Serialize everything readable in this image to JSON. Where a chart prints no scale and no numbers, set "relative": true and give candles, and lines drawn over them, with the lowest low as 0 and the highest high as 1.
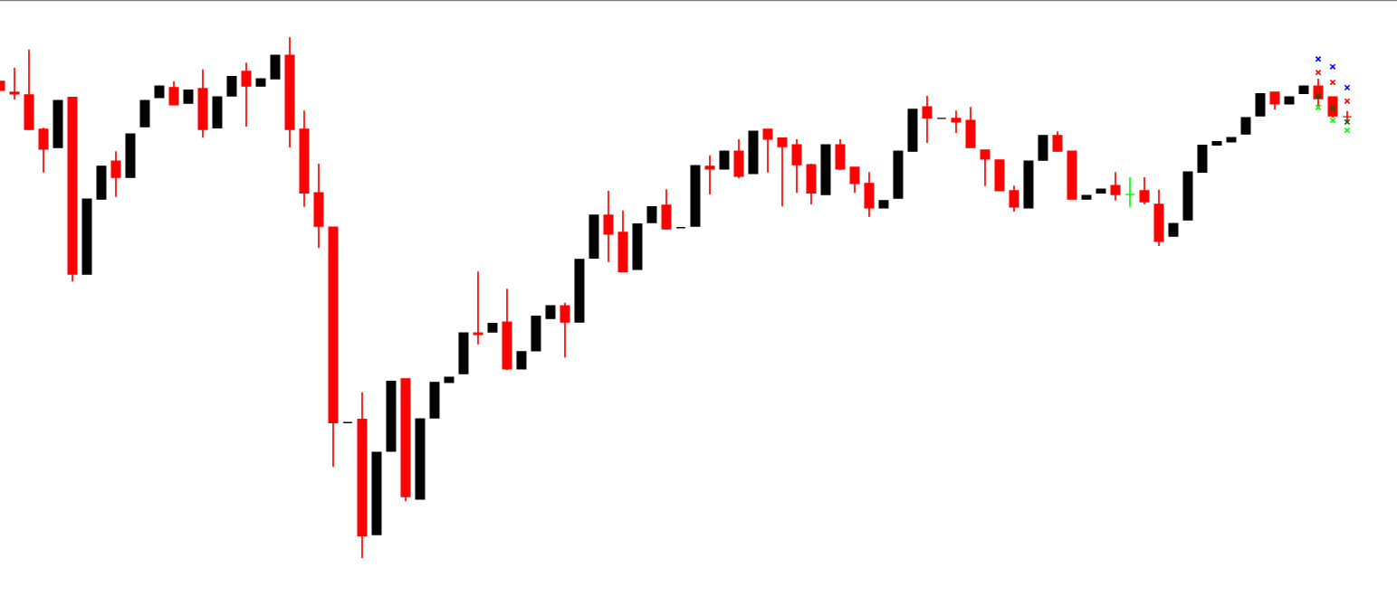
{
  "chart_data": {
    "type": "candlestick",
    "relative": true,
    "grid": false,
    "marker": "cross",
    "categories": [
      null,
      null,
      null,
      null,
      null,
      null,
      null,
      null,
      null,
      null,
      null,
      null,
      null,
      null,
      null,
      null,
      null,
      null,
      null,
      null,
      null,
      null,
      null,
      null,
      null,
      null,
      null,
      null,
      null,
      null,
      null,
      null,
      null,
      null,
      null,
      null,
      null,
      null,
      null,
      null,
      null,
      null,
      null,
      null,
      null,
      null,
      null,
      null,
      null,
      null,
      null,
      null,
      null,
      null,
      null,
      null,
      null,
      null,
      null,
      null,
      null,
      null,
      null,
      null,
      null,
      null,
      null,
      null,
      null,
      null,
      null,
      null,
      null,
      null,
      null,
      null,
      null,
      null,
      null,
      null,
      null,
      null,
      null,
      null,
      null,
      null,
      null,
      null,
      null,
      null,
      null,
      null,
      null,
      null
    ],
    "ohlc": [
      [
        0.915,
        0.915,
        0.898,
        0.898
      ],
      [
        0.894,
        0.941,
        0.88,
        0.891
      ],
      [
        0.889,
        0.976,
        0.821,
        0.823
      ],
      [
        0.823,
        0.826,
        0.74,
        0.785
      ],
      [
        0.788,
        0.878,
        0.788,
        0.878
      ],
      [
        0.884,
        0.884,
        0.531,
        0.545
      ],
      [
        0.545,
        0.689,
        0.545,
        0.689
      ],
      [
        0.689,
        0.752,
        0.689,
        0.752
      ],
      [
        0.762,
        0.781,
        0.693,
        0.731
      ],
      [
        0.731,
        0.814,
        0.731,
        0.814
      ],
      [
        0.828,
        0.878,
        0.828,
        0.878
      ],
      [
        0.884,
        0.906,
        0.884,
        0.906
      ],
      [
        0.903,
        0.915,
        0.87,
        0.87
      ],
      [
        0.873,
        0.898,
        0.873,
        0.898
      ],
      [
        0.901,
        0.938,
        0.807,
        0.823
      ],
      [
        0.826,
        0.885,
        0.826,
        0.885
      ],
      [
        0.887,
        0.924,
        0.887,
        0.924
      ],
      [
        0.934,
        0.951,
        0.828,
        0.906
      ],
      [
        0.906,
        0.92,
        0.906,
        0.92
      ],
      [
        0.92,
        0.965,
        0.92,
        0.965
      ],
      [
        0.965,
        1,
        0.788,
        0.823
      ],
      [
        0.823,
        0.859,
        0.674,
        0.701
      ],
      [
        0.701,
        0.757,
        0.595,
        0.637
      ],
      [
        0.635,
        0.635,
        0.175,
        0.26
      ],
      [
        0.26,
        0.26,
        0.26,
        0.26
      ],
      [
        0.266,
        0.318,
        0,
        0.043
      ],
      [
        0.045,
        0.203,
        0.045,
        0.203
      ],
      [
        0.205,
        0.339,
        0.205,
        0.339
      ],
      [
        0.344,
        0.344,
        0.109,
        0.118
      ],
      [
        0.113,
        0.267,
        0.113,
        0.267
      ],
      [
        0.269,
        0.337,
        0.269,
        0.337
      ],
      [
        0.337,
        0.347,
        0.337,
        0.347
      ],
      [
        0.354,
        0.432,
        0.354,
        0.432
      ],
      [
        0.432,
        0.55,
        0.41,
        0.429
      ],
      [
        0.434,
        0.45,
        0.434,
        0.45
      ],
      [
        0.453,
        0.517,
        0.361,
        0.363
      ],
      [
        0.363,
        0.396,
        0.363,
        0.396
      ],
      [
        0.398,
        0.464,
        0.398,
        0.464
      ],
      [
        0.46,
        0.484,
        0.46,
        0.484
      ],
      [
        0.484,
        0.49,
        0.385,
        0.453
      ],
      [
        0.453,
        0.573,
        0.453,
        0.573
      ],
      [
        0.576,
        0.658,
        0.576,
        0.658
      ],
      [
        0.658,
        0.705,
        0.568,
        0.622
      ],
      [
        0.625,
        0.667,
        0.55,
        0.55
      ],
      [
        0.554,
        0.641,
        0.554,
        0.641
      ],
      [
        0.644,
        0.674,
        0.644,
        0.674
      ],
      [
        0.677,
        0.708,
        0.63,
        0.632
      ],
      [
        0.634,
        0.634,
        0.634,
        0.634
      ],
      [
        0.637,
        0.753,
        0.637,
        0.753
      ],
      [
        0.752,
        0.773,
        0.698,
        0.747
      ],
      [
        0.747,
        0.781,
        0.747,
        0.781
      ],
      [
        0.781,
        0.804,
        0.729,
        0.733
      ],
      [
        0.738,
        0.819,
        0.738,
        0.819
      ],
      [
        0.823,
        0.823,
        0.74,
        0.804
      ],
      [
        0.806,
        0.806,
        0.675,
        0.79
      ],
      [
        0.793,
        0.804,
        0.701,
        0.755
      ],
      [
        0.755,
        0.757,
        0.679,
        0.701
      ],
      [
        0.698,
        0.793,
        0.698,
        0.793
      ],
      [
        0.793,
        0.804,
        0.745,
        0.747
      ],
      [
        0.75,
        0.75,
        0.701,
        0.719
      ],
      [
        0.719,
        0.741,
        0.655,
        0.672
      ],
      [
        0.672,
        0.686,
        0.672,
        0.686
      ],
      [
        0.691,
        0.781,
        0.691,
        0.781
      ],
      [
        0.781,
        0.861,
        0.781,
        0.861
      ],
      [
        0.866,
        0.887,
        0.797,
        0.845
      ],
      [
        0.844,
        0.844,
        0.844,
        0.844
      ],
      [
        0.844,
        0.859,
        0.816,
        0.837
      ],
      [
        0.84,
        0.866,
        0.788,
        0.788
      ],
      [
        0.783,
        0.783,
        0.714,
        0.766
      ],
      [
        0.764,
        0.764,
        0.705,
        0.705
      ],
      [
        0.705,
        0.715,
        0.665,
        0.674
      ],
      [
        0.672,
        0.762,
        0.672,
        0.762
      ],
      [
        0.764,
        0.811,
        0.764,
        0.811
      ],
      [
        0.811,
        0.819,
        0.78,
        0.781
      ],
      [
        0.781,
        0.781,
        0.689,
        0.689
      ],
      [
        0.689,
        0.696,
        0.689,
        0.696
      ],
      [
        0.701,
        0.708,
        0.701,
        0.708
      ],
      [
        0.715,
        0.741,
        0.686,
        0.698
      ],
      [
        0.698,
        0.731,
        0.674,
        0.698
      ],
      [
        0.705,
        0.731,
        0.679,
        0.684
      ],
      [
        0.679,
        0.707,
        0.599,
        0.608
      ],
      [
        0.618,
        0.642,
        0.618,
        0.642
      ],
      [
        0.649,
        0.741,
        0.649,
        0.741
      ],
      [
        0.741,
        0.792,
        0.741,
        0.792
      ],
      [
        0.793,
        0.799,
        0.793,
        0.799
      ],
      [
        0.799,
        0.807,
        0.799,
        0.807
      ],
      [
        0.814,
        0.845,
        0.814,
        0.845
      ],
      [
        0.849,
        0.891,
        0.849,
        0.891
      ],
      [
        0.894,
        0.894,
        0.861,
        0.872
      ],
      [
        0.872,
        0.885,
        0.872,
        0.885
      ],
      [
        0.892,
        0.906,
        0.892,
        0.906
      ],
      [
        0.906,
        0.92,
        0.866,
        0.882
      ],
      [
        0.885,
        0.885,
        0.845,
        0.849
      ],
      [
        0.847,
        0.858,
        0.839,
        0.847
      ]
    ],
    "colors": [
      "#ff0000",
      "#ff0000",
      "#ff0000",
      "#ff0000",
      "#000000",
      "#ff0000",
      "#000000",
      "#000000",
      "#ff0000",
      "#000000",
      "#000000",
      "#000000",
      "#ff0000",
      "#000000",
      "#ff0000",
      "#000000",
      "#000000",
      "#ff0000",
      "#000000",
      "#000000",
      "#ff0000",
      "#ff0000",
      "#ff0000",
      "#ff0000",
      "#000000",
      "#ff0000",
      "#000000",
      "#000000",
      "#ff0000",
      "#000000",
      "#000000",
      "#000000",
      "#000000",
      "#ff0000",
      "#000000",
      "#ff0000",
      "#000000",
      "#000000",
      "#000000",
      "#ff0000",
      "#000000",
      "#000000",
      "#ff0000",
      "#ff0000",
      "#000000",
      "#000000",
      "#ff0000",
      "#000000",
      "#000000",
      "#ff0000",
      "#000000",
      "#ff0000",
      "#000000",
      "#ff0000",
      "#ff0000",
      "#ff0000",
      "#ff0000",
      "#000000",
      "#ff0000",
      "#ff0000",
      "#ff0000",
      "#000000",
      "#000000",
      "#000000",
      "#ff0000",
      "#000000",
      "#ff0000",
      "#ff0000",
      "#ff0000",
      "#ff0000",
      "#ff0000",
      "#000000",
      "#000000",
      "#ff0000",
      "#ff0000",
      "#000000",
      "#000000",
      "#ff0000",
      "#00ff00",
      "#ff0000",
      "#ff0000",
      "#000000",
      "#000000",
      "#000000",
      "#000000",
      "#000000",
      "#000000",
      "#000000",
      "#ff0000",
      "#000000",
      "#000000",
      "#ff0000",
      "#ff0000",
      "#ff0000"
    ],
    "series": [
      {
        "type": "scatter",
        "color": "#0000ff",
        "values": [
          null,
          null,
          null,
          null,
          null,
          null,
          null,
          null,
          null,
          null,
          null,
          null,
          null,
          null,
          null,
          null,
          null,
          null,
          null,
          null,
          null,
          null,
          null,
          null,
          null,
          null,
          null,
          null,
          null,
          null,
          null,
          null,
          null,
          null,
          null,
          null,
          null,
          null,
          null,
          null,
          null,
          null,
          null,
          null,
          null,
          null,
          null,
          null,
          null,
          null,
          null,
          null,
          null,
          null,
          null,
          null,
          null,
          null,
          null,
          null,
          null,
          null,
          null,
          null,
          null,
          null,
          null,
          null,
          null,
          null,
          null,
          null,
          null,
          null,
          null,
          null,
          null,
          null,
          null,
          null,
          null,
          null,
          null,
          null,
          null,
          null,
          null,
          null,
          null,
          null,
          null,
          0.958,
          0.943,
          0.903
        ]
      },
      {
        "type": "scatter",
        "color": "#ff0000",
        "values": [
          null,
          null,
          null,
          null,
          null,
          null,
          null,
          null,
          null,
          null,
          null,
          null,
          null,
          null,
          null,
          null,
          null,
          null,
          null,
          null,
          null,
          null,
          null,
          null,
          null,
          null,
          null,
          null,
          null,
          null,
          null,
          null,
          null,
          null,
          null,
          null,
          null,
          null,
          null,
          null,
          null,
          null,
          null,
          null,
          null,
          null,
          null,
          null,
          null,
          null,
          null,
          null,
          null,
          null,
          null,
          null,
          null,
          null,
          null,
          null,
          null,
          null,
          null,
          null,
          null,
          null,
          null,
          null,
          null,
          null,
          null,
          null,
          null,
          null,
          null,
          null,
          null,
          null,
          null,
          null,
          null,
          null,
          null,
          null,
          null,
          null,
          null,
          null,
          null,
          null,
          null,
          0.932,
          0.913,
          0.877
        ]
      },
      {
        "type": "scatter",
        "color": "#006400",
        "values": [
          null,
          null,
          null,
          null,
          null,
          null,
          null,
          null,
          null,
          null,
          null,
          null,
          null,
          null,
          null,
          null,
          null,
          null,
          null,
          null,
          null,
          null,
          null,
          null,
          null,
          null,
          null,
          null,
          null,
          null,
          null,
          null,
          null,
          null,
          null,
          null,
          null,
          null,
          null,
          null,
          null,
          null,
          null,
          null,
          null,
          null,
          null,
          null,
          null,
          null,
          null,
          null,
          null,
          null,
          null,
          null,
          null,
          null,
          null,
          null,
          null,
          null,
          null,
          null,
          null,
          null,
          null,
          null,
          null,
          null,
          null,
          null,
          null,
          null,
          null,
          null,
          null,
          null,
          null,
          null,
          null,
          null,
          null,
          null,
          null,
          null,
          null,
          null,
          null,
          null,
          null,
          0.887,
          0.863,
          0.837
        ]
      },
      {
        "type": "scatter",
        "color": "#00ff00",
        "values": [
          null,
          null,
          null,
          null,
          null,
          null,
          null,
          null,
          null,
          null,
          null,
          null,
          null,
          null,
          null,
          null,
          null,
          null,
          null,
          null,
          null,
          null,
          null,
          null,
          null,
          null,
          null,
          null,
          null,
          null,
          null,
          null,
          null,
          null,
          null,
          null,
          null,
          null,
          null,
          null,
          null,
          null,
          null,
          null,
          null,
          null,
          null,
          null,
          null,
          null,
          null,
          null,
          null,
          null,
          null,
          null,
          null,
          null,
          null,
          null,
          null,
          null,
          null,
          null,
          null,
          null,
          null,
          null,
          null,
          null,
          null,
          null,
          null,
          null,
          null,
          null,
          null,
          null,
          null,
          null,
          null,
          null,
          null,
          null,
          null,
          null,
          null,
          null,
          null,
          null,
          null,
          0.865,
          0.84,
          0.821
        ]
      }
    ]
  }
}
